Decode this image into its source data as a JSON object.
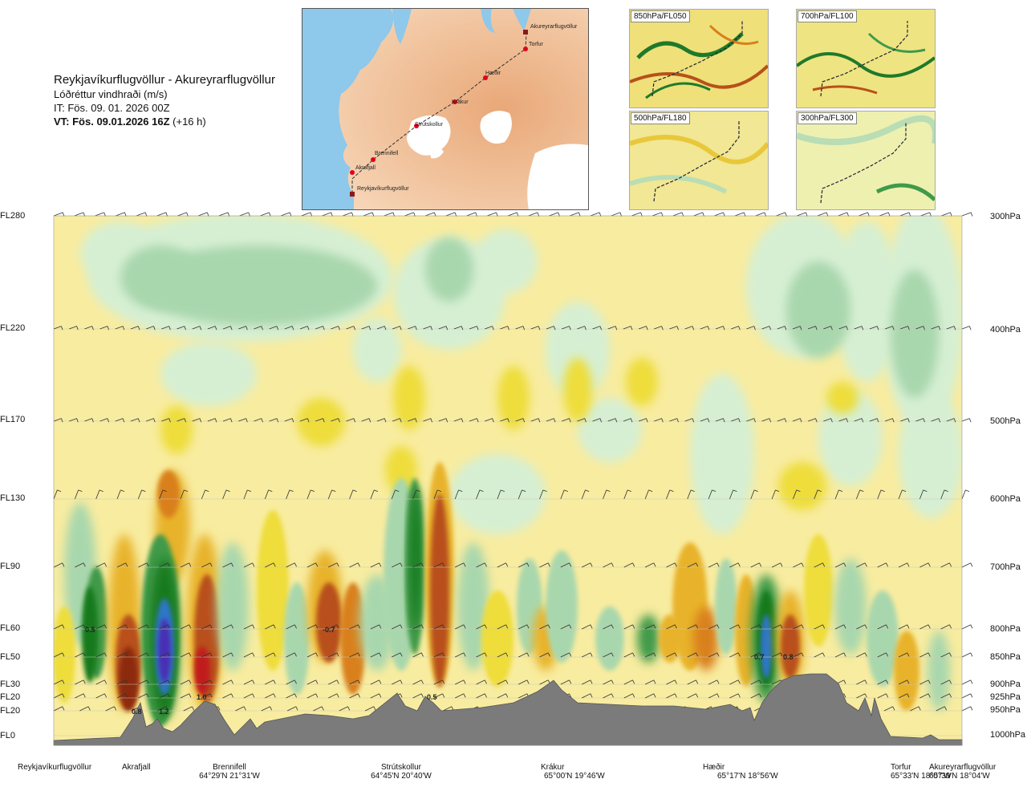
{
  "title": {
    "route": "Reykjavíkurflugvöllur - Akureyrarflugvöllur",
    "variable": "Lóðréttur vindhraði (m/s)",
    "it": "IT: Fös. 09. 01. 2026 00Z",
    "vt": "VT: Fös. 09.01.2026 16Z",
    "vt_offset": "(+16 h)"
  },
  "map": {
    "labels": [
      "Akureyrarflugvöllur",
      "Torfur",
      "Hæðir",
      "Krákur",
      "Strútskollur",
      "Brennifell",
      "Akrafjall",
      "Reykjavíkurflugvöllur"
    ],
    "colors": {
      "land": "#f5caa0",
      "sea": "#8ec8ea",
      "glacier": "#ffffff",
      "route": "#333333",
      "point": "#e0001a"
    }
  },
  "panels": [
    {
      "label": "850hPa/FL050"
    },
    {
      "label": "700hPa/FL100"
    },
    {
      "label": "500hPa/FL180"
    },
    {
      "label": "300hPa/FL300"
    }
  ],
  "chart_data": {
    "type": "heatmap",
    "title": "Reykjavíkurflugvöllur - Akureyrarflugvöllur",
    "variable": "Lóðréttur vindhraði (m/s)",
    "y_left_ticks": [
      "FL280",
      "FL220",
      "FL170",
      "FL130",
      "FL90",
      "FL60",
      "FL50",
      "FL30",
      "FL20",
      "FL20",
      "FL0"
    ],
    "y_right_ticks": [
      "300hPa",
      "400hPa",
      "500hPa",
      "600hPa",
      "700hPa",
      "800hPa",
      "850hPa",
      "900hPa",
      "925hPa",
      "950hPa",
      "1000hPa"
    ],
    "waypoints": [
      {
        "name": "Reykjavíkurflugvöllur",
        "coord": ""
      },
      {
        "name": "Akrafjall",
        "coord": ""
      },
      {
        "name": "Brennifell",
        "coord": "64°29'N 21°31'W"
      },
      {
        "name": "Strútskollur",
        "coord": "64°45'N 20°40'W"
      },
      {
        "name": "Krákur",
        "coord": "65°00'N 19°46'W"
      },
      {
        "name": "Hæðir",
        "coord": "65°17'N 18°56'W"
      },
      {
        "name": "Torfur",
        "coord": "65°33'N 18°07'W"
      },
      {
        "name": "Akureyrarflugvöllur",
        "coord": "65°39'N 18°04'W"
      }
    ],
    "value_labels": [
      "0.5",
      "0.8",
      "1.2",
      "1.0",
      "-0.7",
      "0.5",
      "0.7",
      "0.8"
    ],
    "colors": {
      "strong_down": "#4a2fb4",
      "down3": "#2f76c8",
      "down2": "#147a1e",
      "down1": "#3f9a4a",
      "weak_down": "#a9d7ad",
      "very_weak_down": "#d6efd3",
      "neutral": "#f8eca0",
      "weak_up": "#eedd3a",
      "up1": "#e8b32c",
      "up2": "#d9801a",
      "up3": "#b8501a",
      "strong_up": "#8b2a10",
      "extreme_up": "#c11a1a",
      "terrain": "#7b7b7b"
    }
  }
}
